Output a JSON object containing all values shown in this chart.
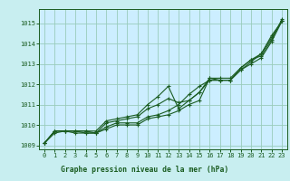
{
  "bg_color": "#c8eef0",
  "plot_bg_color": "#cceeff",
  "grid_color": "#99ccbb",
  "line_color": "#1a5c20",
  "title": "Graphe pression niveau de la mer (hPa)",
  "xlim": [
    -0.5,
    23.5
  ],
  "ylim": [
    1008.8,
    1015.7
  ],
  "yticks": [
    1009,
    1010,
    1011,
    1012,
    1013,
    1014,
    1015
  ],
  "xticks": [
    0,
    1,
    2,
    3,
    4,
    5,
    6,
    7,
    8,
    9,
    10,
    11,
    12,
    13,
    14,
    15,
    16,
    17,
    18,
    19,
    20,
    21,
    22,
    23
  ],
  "lines": [
    [
      1009.1,
      1009.7,
      1009.7,
      1009.7,
      1009.6,
      1009.6,
      1009.9,
      1010.1,
      1010.1,
      1010.1,
      1010.4,
      1010.5,
      1010.7,
      1011.0,
      1011.5,
      1011.9,
      1012.2,
      1012.2,
      1012.2,
      1012.7,
      1013.1,
      1013.5,
      1014.4,
      1015.1
    ],
    [
      1009.1,
      1009.7,
      1009.7,
      1009.7,
      1009.7,
      1009.6,
      1010.1,
      1010.2,
      1010.3,
      1010.4,
      1010.8,
      1011.0,
      1011.3,
      1011.1,
      1011.2,
      1011.6,
      1012.2,
      1012.2,
      1012.2,
      1012.7,
      1013.0,
      1013.3,
      1014.1,
      1015.1
    ],
    [
      1009.1,
      1009.7,
      1009.7,
      1009.7,
      1009.7,
      1009.7,
      1010.2,
      1010.3,
      1010.4,
      1010.5,
      1011.0,
      1011.4,
      1011.9,
      1010.8,
      1011.2,
      1011.6,
      1012.3,
      1012.3,
      1012.3,
      1012.8,
      1013.2,
      1013.5,
      1014.3,
      1015.1
    ],
    [
      1009.1,
      1009.6,
      1009.7,
      1009.6,
      1009.6,
      1009.6,
      1009.8,
      1010.0,
      1010.0,
      1010.0,
      1010.3,
      1010.4,
      1010.5,
      1010.7,
      1011.0,
      1011.2,
      1012.3,
      1012.2,
      1012.2,
      1012.8,
      1013.2,
      1013.4,
      1014.2,
      1015.2
    ]
  ]
}
